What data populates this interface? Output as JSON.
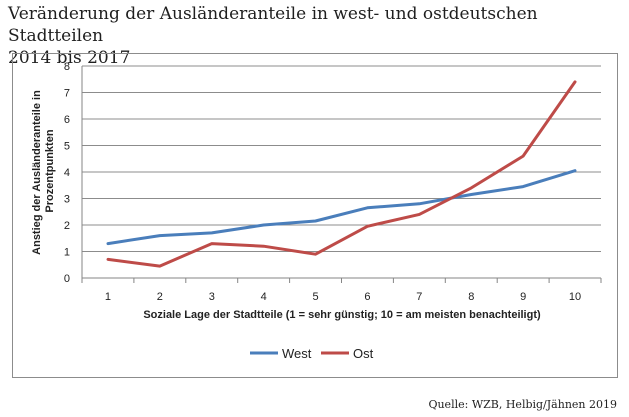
{
  "title_line1": "Veränderung der Ausländeranteile  in west- und ostdeutschen Stadtteilen",
  "title_line2": "2014 bis 2017",
  "source": "Quelle: WZB, Helbig/Jähnen 2019",
  "chart_data": {
    "type": "line",
    "x": [
      1,
      2,
      3,
      4,
      5,
      6,
      7,
      8,
      9,
      10
    ],
    "categories": [
      "1",
      "2",
      "3",
      "4",
      "5",
      "6",
      "7",
      "8",
      "9",
      "10"
    ],
    "series": [
      {
        "name": "West",
        "color": "#4a7ebb",
        "values": [
          1.3,
          1.6,
          1.7,
          2.0,
          2.15,
          2.65,
          2.8,
          3.15,
          3.45,
          4.05
        ]
      },
      {
        "name": "Ost",
        "color": "#be4b48",
        "values": [
          0.7,
          0.45,
          1.3,
          1.2,
          0.9,
          1.95,
          2.4,
          3.4,
          4.6,
          7.4
        ]
      }
    ],
    "ylim": [
      0,
      8
    ],
    "yticks": [
      "0",
      "1",
      "2",
      "3",
      "4",
      "5",
      "6",
      "7",
      "8"
    ],
    "xlabel": "Soziale  Lage der Stadtteile (1 = sehr günstig; 10 = am meisten benachteiligt)",
    "ylabel_line1": "Anstieg der Ausländeranteile  in",
    "ylabel_line2": "Prozentpunkten",
    "grid": true,
    "legend": "bottom"
  }
}
